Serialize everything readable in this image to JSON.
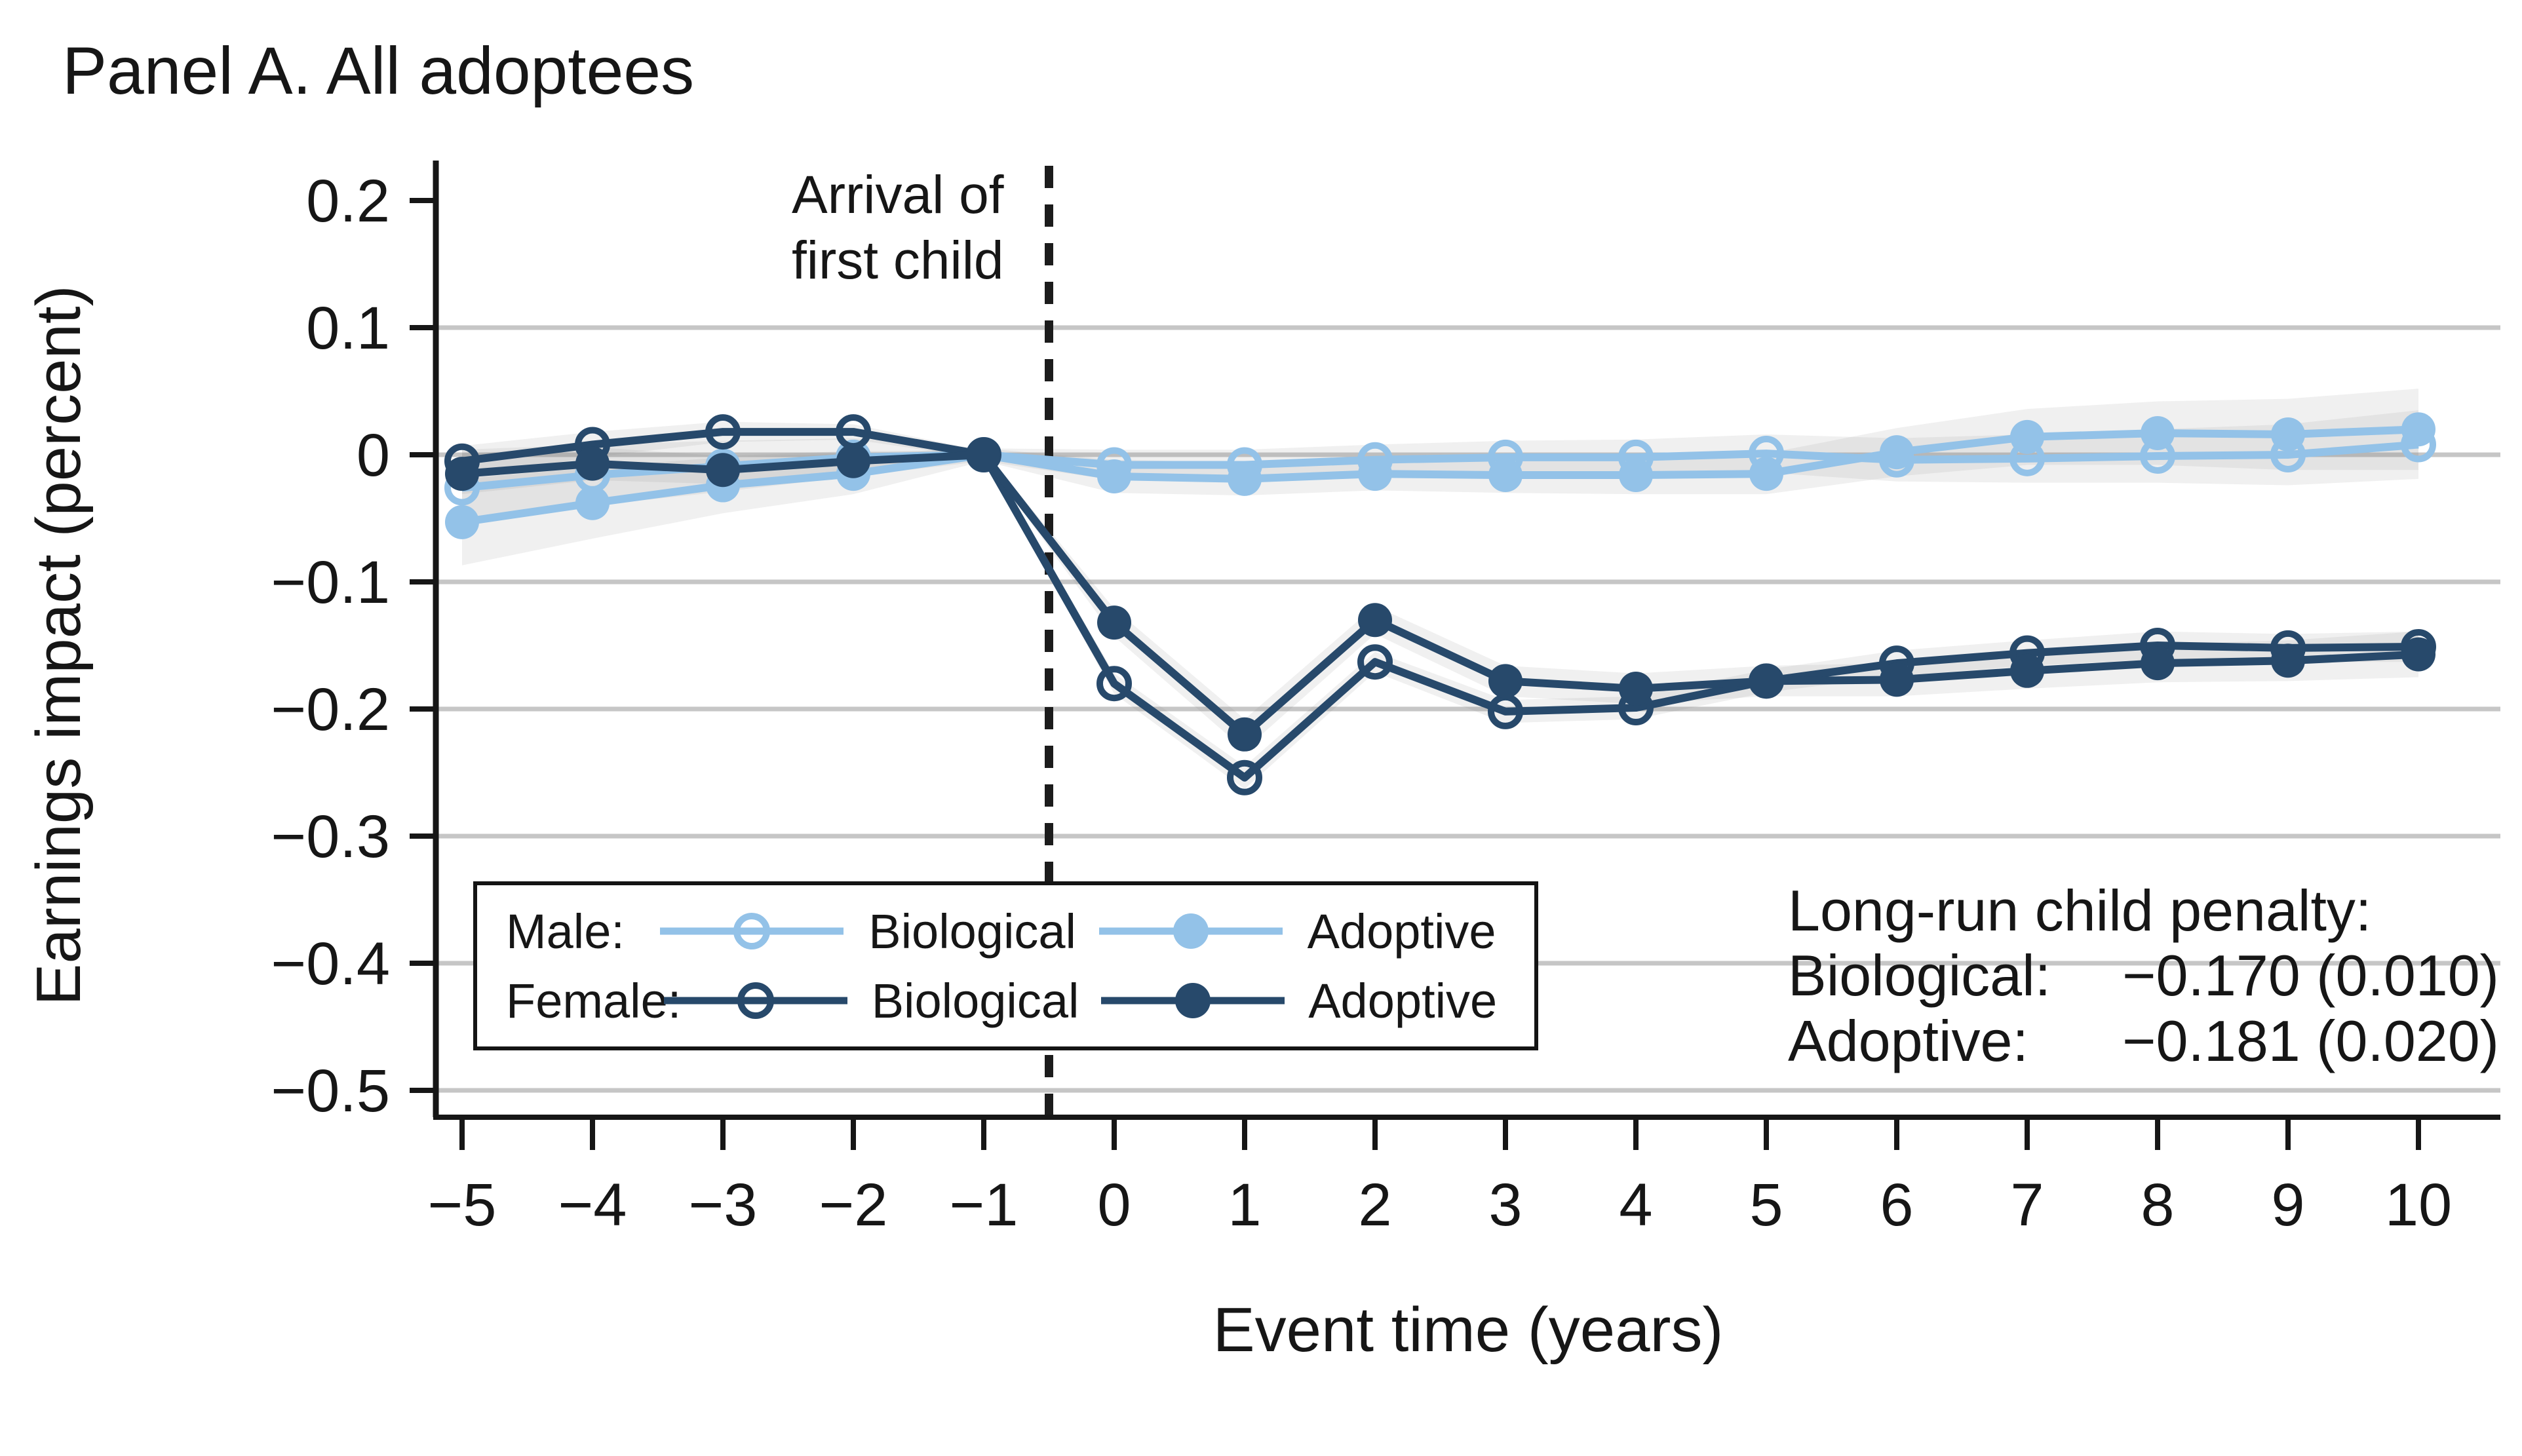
{
  "panel": {
    "title": "Panel A. All adoptees"
  },
  "axes": {
    "y_label": "Earnings impact (percent)",
    "x_label": "Event time (years)",
    "y_ticks": [
      "0.2",
      "0.1",
      "0",
      "−0.1",
      "−0.2",
      "−0.3",
      "−0.4",
      "−0.5"
    ],
    "x_ticks": [
      "−5",
      "−4",
      "−3",
      "−2",
      "−1",
      "0",
      "1",
      "2",
      "3",
      "4",
      "5",
      "6",
      "7",
      "8",
      "9",
      "10"
    ]
  },
  "annotation": {
    "line1": "Arrival of",
    "line2": "first child"
  },
  "legend": {
    "rows": [
      {
        "group": "Male:",
        "items": [
          {
            "label": "Biological",
            "marker": "open",
            "color": "#93c2e8"
          },
          {
            "label": "Adoptive",
            "marker": "filled",
            "color": "#93c2e8"
          }
        ]
      },
      {
        "group": "Female:",
        "items": [
          {
            "label": "Biological",
            "marker": "open",
            "color": "#27496b"
          },
          {
            "label": "Adoptive",
            "marker": "filled",
            "color": "#27496b"
          }
        ]
      }
    ]
  },
  "penalty": {
    "title": "Long-run child penalty:",
    "rows": [
      {
        "label": "Biological:",
        "value": "−0.170 (0.010)"
      },
      {
        "label": "Adoptive:",
        "value": "−0.181 (0.020)"
      }
    ]
  },
  "chart_data": {
    "type": "line",
    "title": "Panel A. All adoptees",
    "xlabel": "Event time (years)",
    "ylabel": "Earnings impact (percent)",
    "x": [
      -5,
      -4,
      -3,
      -2,
      -1,
      0,
      1,
      2,
      3,
      4,
      5,
      6,
      7,
      8,
      9,
      10
    ],
    "ylim": [
      -0.55,
      0.24
    ],
    "ytick_values": [
      0.2,
      0.1,
      0,
      -0.1,
      -0.2,
      -0.3,
      -0.4,
      -0.5
    ],
    "gridline_values": [
      0.1,
      0,
      -0.1,
      -0.2,
      -0.3,
      -0.4,
      -0.5
    ],
    "vline_x": -0.5,
    "legend_position": "lower-left-box",
    "grid": true,
    "colors": {
      "male": "#93c2e8",
      "female": "#27496b",
      "gridline": "#c6c6c6",
      "axis": "#161616",
      "band": "#8d8d8d"
    },
    "series": [
      {
        "name": "Male Biological",
        "group": "Male",
        "variant": "Biological",
        "marker": "open",
        "color": "#93c2e8",
        "values": [
          -0.026,
          -0.016,
          -0.009,
          -0.002,
          0,
          -0.008,
          -0.008,
          -0.004,
          -0.002,
          -0.002,
          0.001,
          -0.004,
          -0.003,
          -0.001,
          0.0,
          0.008
        ],
        "band": [
          0.03,
          0.024,
          0.02,
          0.015,
          0.005,
          0.012,
          0.012,
          0.012,
          0.013,
          0.014,
          0.015,
          0.017,
          0.019,
          0.021,
          0.024,
          0.027
        ]
      },
      {
        "name": "Male Adoptive",
        "group": "Male",
        "variant": "Adoptive",
        "marker": "filled",
        "color": "#93c2e8",
        "values": [
          -0.053,
          -0.038,
          -0.024,
          -0.015,
          0,
          -0.017,
          -0.019,
          -0.015,
          -0.016,
          -0.016,
          -0.015,
          0.002,
          0.014,
          0.017,
          0.016,
          0.02
        ],
        "band": [
          0.034,
          0.028,
          0.022,
          0.016,
          0.005,
          0.013,
          0.013,
          0.013,
          0.014,
          0.015,
          0.016,
          0.019,
          0.022,
          0.025,
          0.028,
          0.032
        ]
      },
      {
        "name": "Female Biological",
        "group": "Female",
        "variant": "Biological",
        "marker": "open",
        "color": "#27496b",
        "values": [
          -0.005,
          0.008,
          0.018,
          0.018,
          0,
          -0.18,
          -0.254,
          -0.163,
          -0.202,
          -0.199,
          -0.178,
          -0.164,
          -0.156,
          -0.15,
          -0.152,
          -0.151
        ],
        "band": [
          0.012,
          0.01,
          0.008,
          0.006,
          0.003,
          0.008,
          0.009,
          0.008,
          0.009,
          0.009,
          0.009,
          0.01,
          0.01,
          0.011,
          0.011,
          0.012
        ]
      },
      {
        "name": "Female Adoptive",
        "group": "Female",
        "variant": "Adoptive",
        "marker": "filled",
        "color": "#27496b",
        "values": [
          -0.015,
          -0.007,
          -0.012,
          -0.005,
          0,
          -0.132,
          -0.22,
          -0.13,
          -0.178,
          -0.184,
          -0.178,
          -0.177,
          -0.17,
          -0.164,
          -0.162,
          -0.157
        ],
        "band": [
          0.016,
          0.013,
          0.011,
          0.008,
          0.003,
          0.011,
          0.012,
          0.011,
          0.012,
          0.012,
          0.012,
          0.013,
          0.014,
          0.015,
          0.016,
          0.018
        ]
      }
    ],
    "long_run_child_penalty": {
      "biological": -0.17,
      "biological_se": 0.01,
      "adoptive": -0.181,
      "adoptive_se": 0.02
    }
  }
}
